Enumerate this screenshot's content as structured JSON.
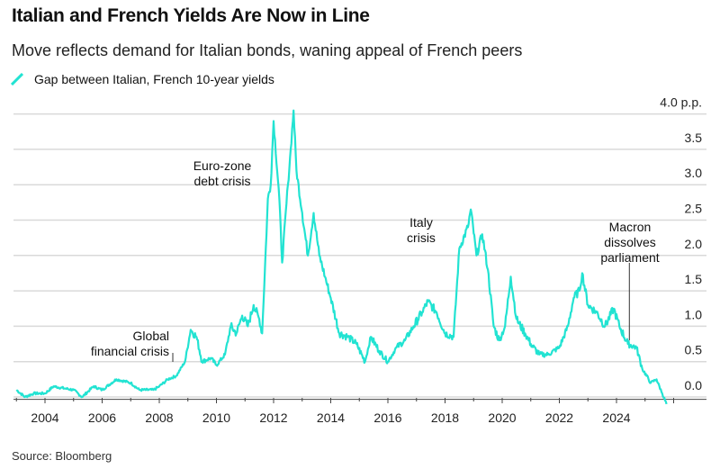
{
  "title": "Italian and French Yields Are Now in Line",
  "subtitle": "Move reflects demand for Italian bonds, waning appeal of French peers",
  "source": "Source: Bloomberg",
  "colors": {
    "series": "#22e3d2",
    "grid": "#d9d9d9"
  },
  "chart_data": {
    "type": "line",
    "title": "Italian and French Yields Are Now in Line",
    "series": [
      {
        "name": "Gap between Italian, French 10-year yields",
        "points": [
          [
            2003.0,
            0.1
          ],
          [
            2003.3,
            0.0
          ],
          [
            2003.6,
            0.05
          ],
          [
            2004.0,
            0.05
          ],
          [
            2004.3,
            0.15
          ],
          [
            2004.7,
            0.12
          ],
          [
            2005.0,
            0.1
          ],
          [
            2005.3,
            0.0
          ],
          [
            2005.7,
            0.15
          ],
          [
            2006.0,
            0.1
          ],
          [
            2006.5,
            0.25
          ],
          [
            2007.0,
            0.2
          ],
          [
            2007.3,
            0.1
          ],
          [
            2007.8,
            0.1
          ],
          [
            2008.0,
            0.15
          ],
          [
            2008.3,
            0.25
          ],
          [
            2008.6,
            0.3
          ],
          [
            2008.9,
            0.5
          ],
          [
            2009.1,
            0.95
          ],
          [
            2009.3,
            0.85
          ],
          [
            2009.5,
            0.5
          ],
          [
            2009.8,
            0.55
          ],
          [
            2010.0,
            0.45
          ],
          [
            2010.3,
            0.6
          ],
          [
            2010.5,
            1.0
          ],
          [
            2010.7,
            0.9
          ],
          [
            2010.9,
            1.15
          ],
          [
            2011.1,
            1.0
          ],
          [
            2011.3,
            1.3
          ],
          [
            2011.5,
            1.1
          ],
          [
            2011.6,
            0.9
          ],
          [
            2011.8,
            2.8
          ],
          [
            2011.9,
            3.0
          ],
          [
            2012.0,
            3.9
          ],
          [
            2012.2,
            2.8
          ],
          [
            2012.3,
            1.9
          ],
          [
            2012.5,
            3.0
          ],
          [
            2012.6,
            3.5
          ],
          [
            2012.7,
            4.05
          ],
          [
            2012.8,
            3.2
          ],
          [
            2013.0,
            2.6
          ],
          [
            2013.2,
            2.0
          ],
          [
            2013.4,
            2.6
          ],
          [
            2013.6,
            2.0
          ],
          [
            2013.8,
            1.7
          ],
          [
            2014.0,
            1.4
          ],
          [
            2014.3,
            0.9
          ],
          [
            2014.6,
            0.85
          ],
          [
            2014.9,
            0.75
          ],
          [
            2015.2,
            0.5
          ],
          [
            2015.4,
            0.85
          ],
          [
            2015.7,
            0.65
          ],
          [
            2016.0,
            0.5
          ],
          [
            2016.3,
            0.7
          ],
          [
            2016.6,
            0.8
          ],
          [
            2016.9,
            1.0
          ],
          [
            2017.2,
            1.2
          ],
          [
            2017.4,
            1.35
          ],
          [
            2017.7,
            1.2
          ],
          [
            2018.0,
            0.9
          ],
          [
            2018.3,
            0.85
          ],
          [
            2018.5,
            2.1
          ],
          [
            2018.8,
            2.4
          ],
          [
            2018.9,
            2.65
          ],
          [
            2019.1,
            2.0
          ],
          [
            2019.3,
            2.3
          ],
          [
            2019.5,
            1.8
          ],
          [
            2019.7,
            1.0
          ],
          [
            2019.9,
            0.8
          ],
          [
            2020.1,
            1.0
          ],
          [
            2020.3,
            1.7
          ],
          [
            2020.5,
            1.1
          ],
          [
            2020.8,
            0.9
          ],
          [
            2021.0,
            0.75
          ],
          [
            2021.3,
            0.6
          ],
          [
            2021.6,
            0.6
          ],
          [
            2022.0,
            0.7
          ],
          [
            2022.3,
            1.0
          ],
          [
            2022.5,
            1.4
          ],
          [
            2022.7,
            1.5
          ],
          [
            2022.8,
            1.75
          ],
          [
            2023.0,
            1.3
          ],
          [
            2023.3,
            1.2
          ],
          [
            2023.6,
            1.0
          ],
          [
            2023.9,
            1.25
          ],
          [
            2024.1,
            1.0
          ],
          [
            2024.4,
            0.75
          ],
          [
            2024.7,
            0.7
          ],
          [
            2024.9,
            0.4
          ],
          [
            2025.2,
            0.2
          ],
          [
            2025.4,
            0.25
          ],
          [
            2025.6,
            0.05
          ],
          [
            2025.75,
            -0.1
          ]
        ]
      }
    ],
    "xlim": [
      2003,
      2026
    ],
    "ylim": [
      -0.1,
      4.0
    ],
    "x_tick_labels": [
      "2004",
      "2006",
      "2008",
      "2010",
      "2012",
      "2014",
      "2016",
      "2018",
      "2020",
      "2022",
      "2024"
    ],
    "y_tick_labels": [
      "0.0",
      "0.5",
      "1.0",
      "1.5",
      "2.0",
      "2.5",
      "3.0",
      "3.5",
      "4.0 p.p."
    ],
    "y_ticks": [
      0,
      0.5,
      1.0,
      1.5,
      2.0,
      2.5,
      3.0,
      3.5,
      4.0
    ],
    "grid": true,
    "legend_placement": "top-left",
    "annotations": [
      {
        "lines": [
          "Global",
          "financial crisis"
        ],
        "x": 2008.7,
        "y": 0.4
      },
      {
        "lines": [
          "Euro-zone",
          "debt crisis"
        ],
        "x": 2011.7,
        "y": 2.9
      },
      {
        "lines": [
          "Italy",
          "crisis"
        ],
        "x": 2018.4,
        "y": 2.1
      },
      {
        "lines": [
          "Macron",
          "dissolves",
          "parliament"
        ],
        "x": 2024.45,
        "y": 0.8
      }
    ]
  }
}
